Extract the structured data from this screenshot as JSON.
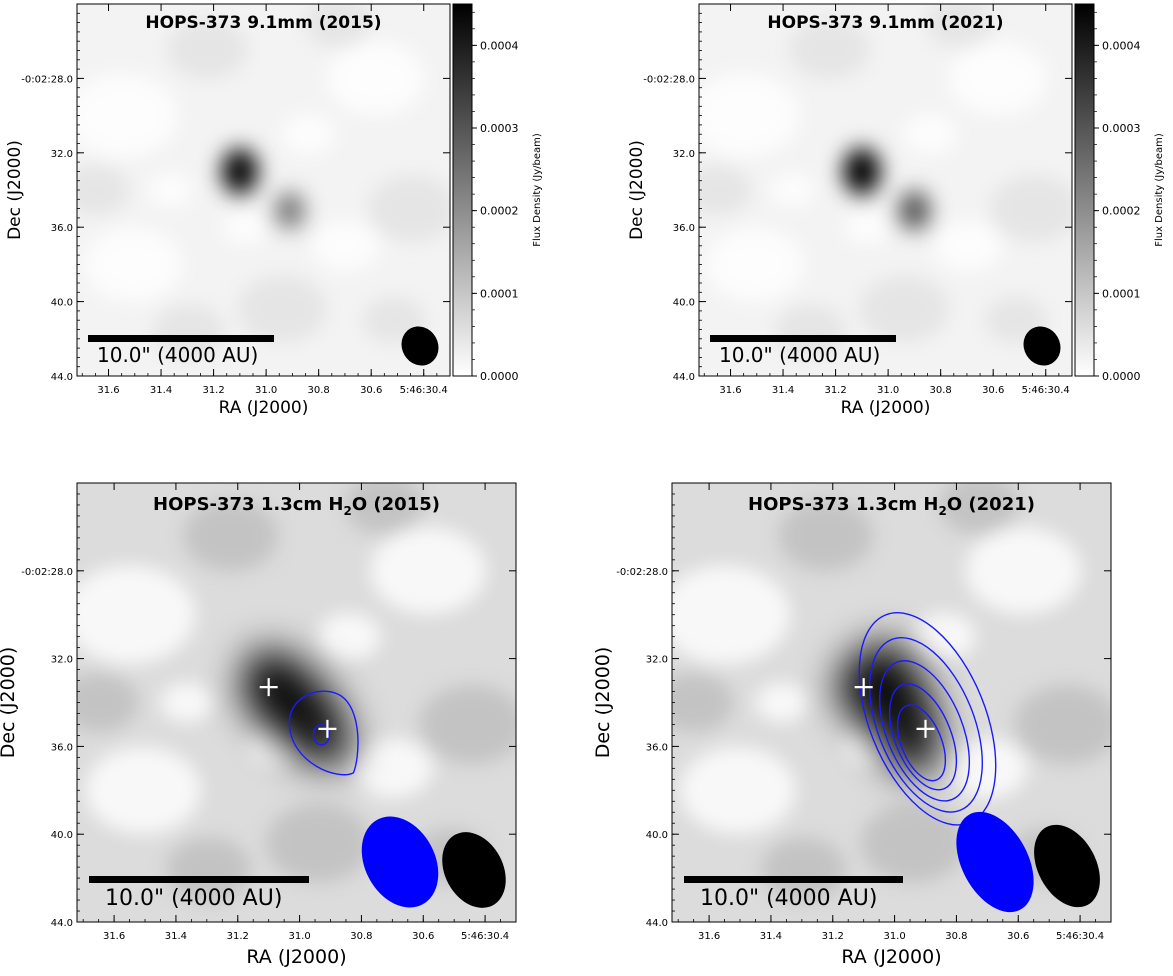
{
  "chart_data": [
    {
      "type": "heatmap",
      "title": "HOPS-373 9.1mm (2015)",
      "title_sub": "",
      "xlabel": "RA (J2000)",
      "ylabel": "Dec (J2000)",
      "x_ticks": [
        "31.6",
        "31.4",
        "31.2",
        "31.0",
        "30.8",
        "30.6",
        "5:46:30.4"
      ],
      "y_ticks": [
        "-0:02:28.0",
        "32.0",
        "36.0",
        "40.0",
        "44.0"
      ],
      "colorbar": {
        "label": "Flux Density (Jy/beam)",
        "ticks": [
          "0.0004",
          "0.0003",
          "0.0002",
          "0.0001",
          "0.0000"
        ],
        "range": [
          0,
          0.00045
        ]
      },
      "scale_bar_label": "10.0\" (4000 AU)",
      "sources": [
        {
          "name": "northern peak",
          "ra_sec": 31.1,
          "dec_arcsec": 33.0,
          "intensity": 0.00042
        },
        {
          "name": "southern peak",
          "ra_sec": 30.91,
          "dec_arcsec": 35.1,
          "intensity": 0.00022
        }
      ],
      "beam": {
        "color": "#000000"
      }
    },
    {
      "type": "heatmap",
      "title": "HOPS-373 9.1mm (2021)",
      "title_sub": "",
      "xlabel": "RA (J2000)",
      "ylabel": "Dec (J2000)",
      "x_ticks": [
        "31.6",
        "31.4",
        "31.2",
        "31.0",
        "30.8",
        "30.6",
        "5:46:30.4"
      ],
      "y_ticks": [
        "-0:02:28.0",
        "32.0",
        "36.0",
        "40.0",
        "44.0"
      ],
      "colorbar": {
        "label": "Flux Density (Jy/beam)",
        "ticks": [
          "0.0004",
          "0.0003",
          "0.0002",
          "0.0001",
          "0.0000"
        ],
        "range": [
          0,
          0.00045
        ]
      },
      "scale_bar_label": "10.0\" (4000 AU)",
      "sources": [
        {
          "name": "northern peak",
          "ra_sec": 31.1,
          "dec_arcsec": 33.0,
          "intensity": 0.00044
        },
        {
          "name": "southern peak",
          "ra_sec": 30.9,
          "dec_arcsec": 35.1,
          "intensity": 0.00028
        }
      ],
      "beam": {
        "color": "#000000"
      }
    },
    {
      "type": "heatmap",
      "title": "HOPS-373 1.3cm H",
      "title_sub": "2",
      "title_after": "O (2015)",
      "xlabel": "RA (J2000)",
      "ylabel": "Dec (J2000)",
      "x_ticks": [
        "31.6",
        "31.4",
        "31.2",
        "31.0",
        "30.8",
        "30.6",
        "5:46:30.4"
      ],
      "y_ticks": [
        "-0:02:28.0",
        "32.0",
        "36.0",
        "40.0",
        "44.0"
      ],
      "scale_bar_label": "10.0\" (4000 AU)",
      "markers": [
        {
          "ra_sec": 31.1,
          "dec_arcsec": 33.3
        },
        {
          "ra_sec": 30.91,
          "dec_arcsec": 35.2
        }
      ],
      "contour_color": "#1a1aff",
      "contour_levels": 2,
      "beams": [
        {
          "color": "#0000ff"
        },
        {
          "color": "#000000"
        }
      ]
    },
    {
      "type": "heatmap",
      "title": "HOPS-373 1.3cm H",
      "title_sub": "2",
      "title_after": "O (2021)",
      "xlabel": "RA (J2000)",
      "ylabel": "Dec (J2000)",
      "x_ticks": [
        "31.6",
        "31.4",
        "31.2",
        "31.0",
        "30.8",
        "30.6",
        "5:46:30.4"
      ],
      "y_ticks": [
        "-0:02:28.0",
        "32.0",
        "36.0",
        "40.0",
        "44.0"
      ],
      "scale_bar_label": "10.0\" (4000 AU)",
      "markers": [
        {
          "ra_sec": 31.1,
          "dec_arcsec": 33.3
        },
        {
          "ra_sec": 30.9,
          "dec_arcsec": 35.2
        }
      ],
      "contour_color": "#1a1aff",
      "contour_levels": 5,
      "beams": [
        {
          "color": "#0000ff"
        },
        {
          "color": "#000000"
        }
      ]
    }
  ]
}
